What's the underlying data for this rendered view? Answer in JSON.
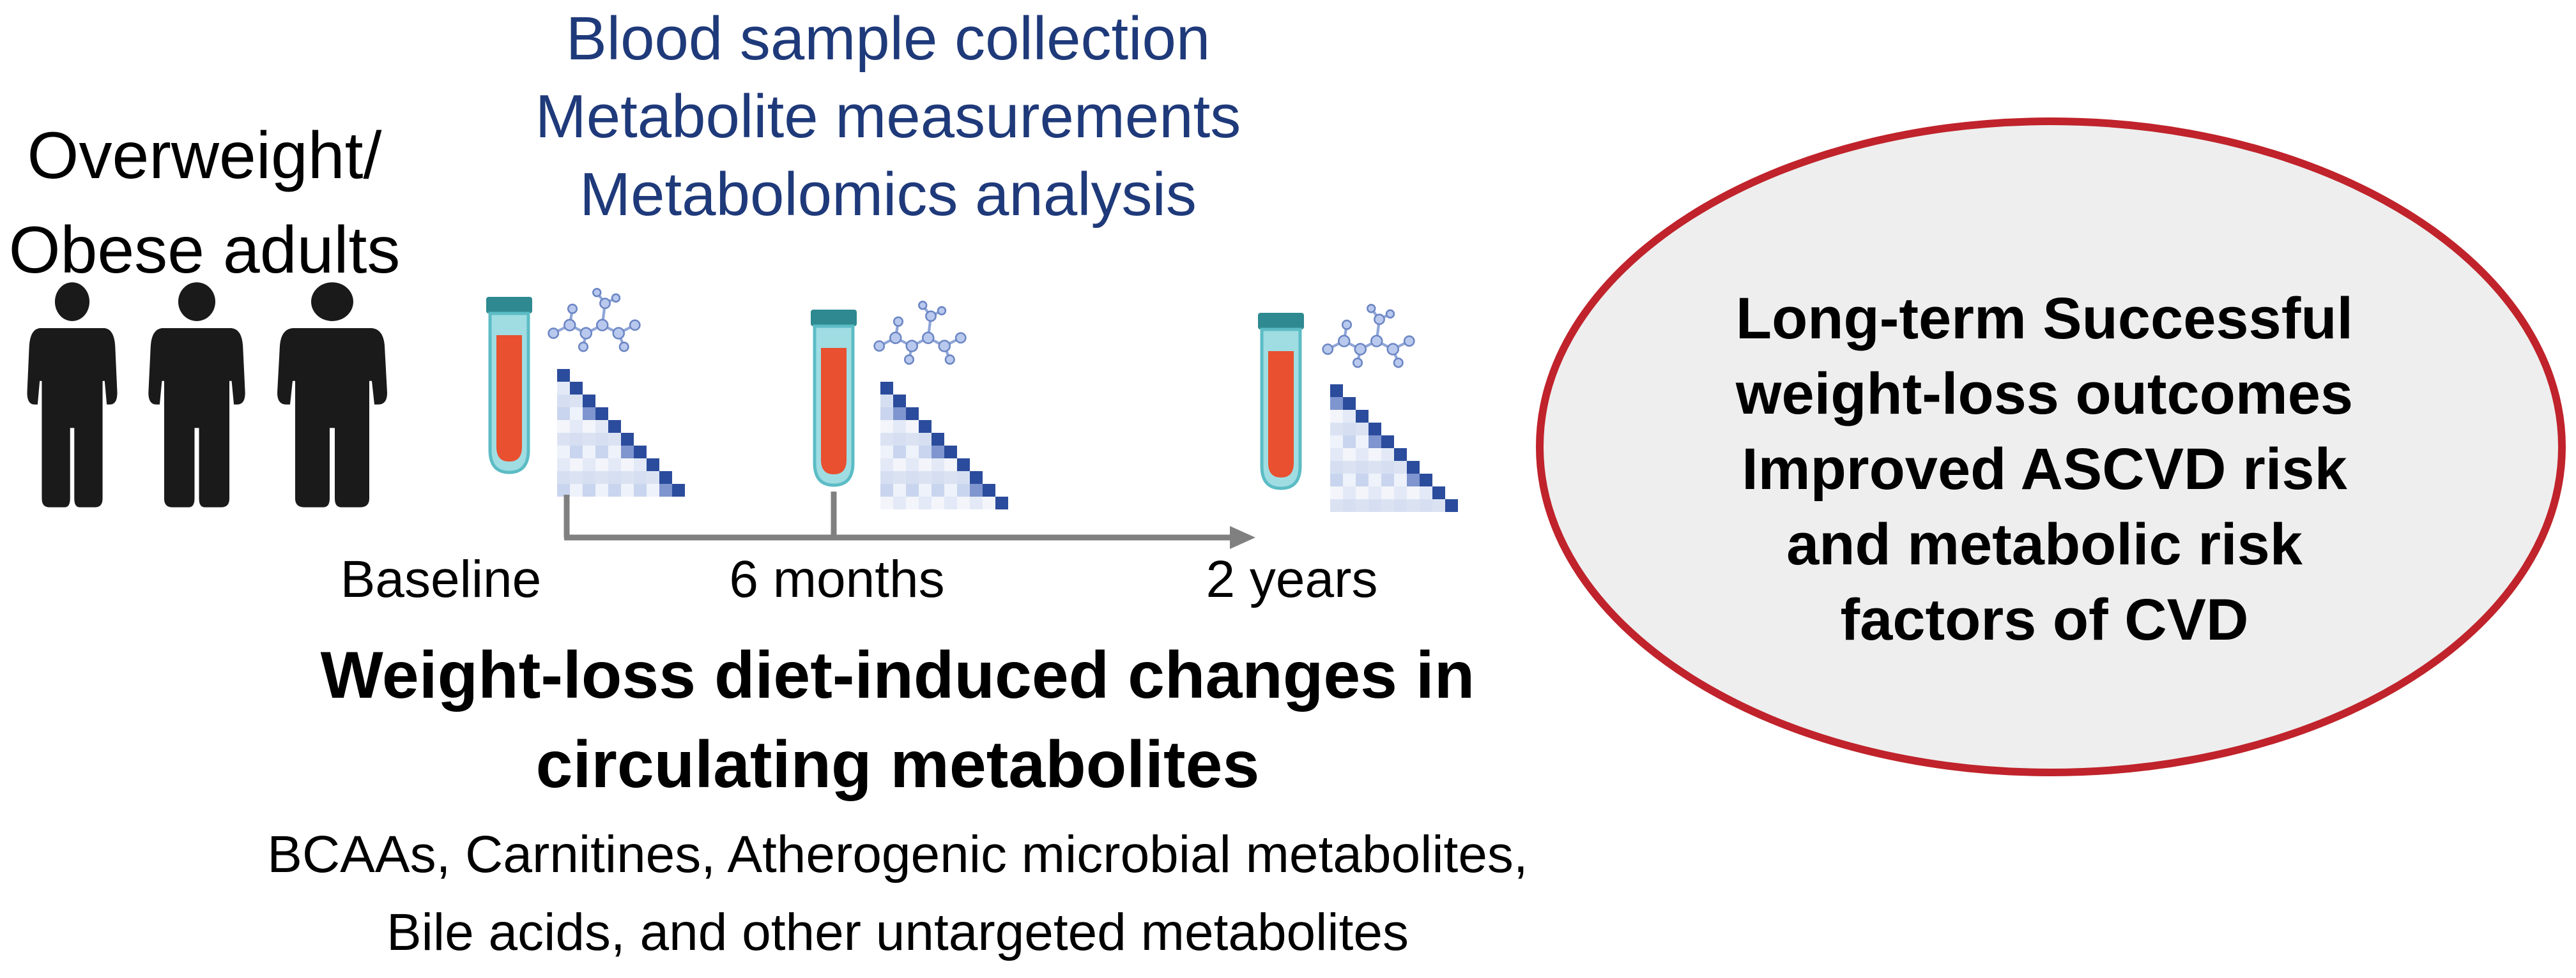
{
  "population": {
    "lines": [
      "Overweight/",
      "Obese adults"
    ]
  },
  "study_steps": {
    "lines": [
      "Blood sample collection",
      "Metabolite measurements",
      "Metabolomics analysis"
    ]
  },
  "timeline": {
    "points": [
      "Baseline",
      "6 months",
      "2 years"
    ]
  },
  "changes": {
    "title_lines": [
      "Weight-loss diet-induced changes in",
      "circulating metabolites"
    ],
    "detail_lines": [
      "BCAAs, Carnitines, Atherogenic microbial metabolites,",
      "Bile acids, and other untargeted metabolites"
    ]
  },
  "outcome": {
    "lines": [
      "Long-term Successful",
      "weight-loss outcomes",
      "Improved ASCVD risk",
      "and metabolic risk",
      "factors of CVD"
    ]
  },
  "colors": {
    "text_blue": "#1f3a7a",
    "tube_cap": "#2e8a90",
    "tube_glass": "#7fd0d8",
    "blood": "#e8502f",
    "matrix_dark": "#2b4c9c",
    "ellipse_fill": "#eeeeee",
    "ellipse_stroke": "#c0232b",
    "arrow": "#808080"
  },
  "icons": {
    "person": "person-silhouette-icon",
    "tube": "blood-tube-icon",
    "molecule": "molecule-icon",
    "matrix": "correlation-matrix-icon"
  }
}
